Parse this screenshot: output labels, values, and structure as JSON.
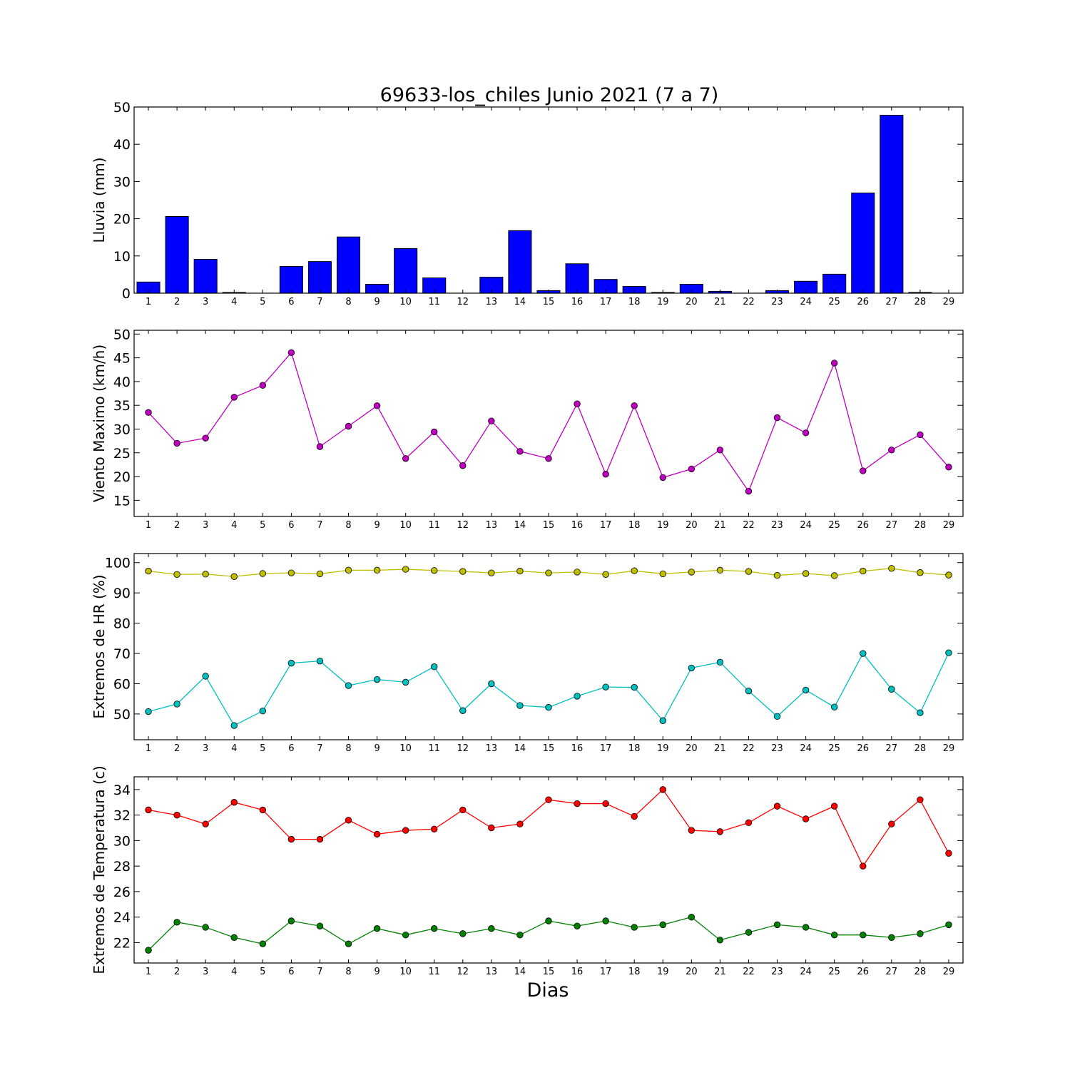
{
  "title": "69633-los_chiles Junio 2021  (7 a 7)",
  "xlabel": "Dias",
  "days": [
    1,
    2,
    3,
    4,
    5,
    6,
    7,
    8,
    9,
    10,
    11,
    12,
    13,
    14,
    15,
    16,
    17,
    18,
    19,
    20,
    21,
    22,
    23,
    24,
    25,
    26,
    27,
    28,
    29
  ],
  "colors": {
    "rain": "#0000ff",
    "wind": "#bf00bf",
    "hr_max": "#bfbf00",
    "hr_min": "#00bfbf",
    "temp_max": "#ff0000",
    "temp_min": "#008000"
  },
  "chart_data": [
    {
      "type": "bar",
      "ylabel": "Lluvia (mm)",
      "ylim": [
        0,
        50
      ],
      "yticks": [
        0,
        10,
        20,
        30,
        40,
        50
      ],
      "x": [
        1,
        2,
        3,
        4,
        5,
        6,
        7,
        8,
        9,
        10,
        11,
        12,
        13,
        14,
        15,
        16,
        17,
        18,
        19,
        20,
        21,
        22,
        23,
        24,
        25,
        26,
        27,
        28,
        29
      ],
      "values": [
        3.0,
        20.6,
        9.1,
        0.2,
        0.0,
        7.2,
        8.5,
        15.1,
        2.4,
        12.0,
        4.1,
        0.0,
        4.3,
        16.8,
        0.7,
        7.9,
        3.7,
        1.8,
        0.2,
        2.4,
        0.5,
        0.0,
        0.7,
        3.2,
        5.1,
        26.9,
        47.8,
        0.2,
        0.0
      ]
    },
    {
      "type": "line",
      "ylabel": "Viento Maximo (km/h)",
      "ylim": [
        11.6,
        50.8
      ],
      "yticks": [
        15,
        20,
        25,
        30,
        35,
        40,
        45,
        50
      ],
      "x": [
        1,
        2,
        3,
        4,
        5,
        6,
        7,
        8,
        9,
        10,
        11,
        12,
        13,
        14,
        15,
        16,
        17,
        18,
        19,
        20,
        21,
        22,
        23,
        24,
        25,
        26,
        27,
        28,
        29
      ],
      "series": [
        {
          "color": "#bf00bf",
          "values": [
            33.5,
            27.0,
            28.1,
            36.7,
            39.2,
            46.1,
            26.3,
            30.6,
            34.9,
            23.8,
            29.4,
            22.3,
            31.7,
            25.3,
            23.8,
            35.3,
            20.5,
            34.9,
            19.8,
            21.6,
            25.6,
            16.9,
            32.4,
            29.2,
            43.9,
            21.2,
            25.6,
            28.8,
            22.0
          ]
        }
      ]
    },
    {
      "type": "line",
      "ylabel": "Extremos de HR (%)",
      "ylim": [
        41.5,
        103
      ],
      "yticks": [
        50,
        60,
        70,
        80,
        90,
        100
      ],
      "x": [
        1,
        2,
        3,
        4,
        5,
        6,
        7,
        8,
        9,
        10,
        11,
        12,
        13,
        14,
        15,
        16,
        17,
        18,
        19,
        20,
        21,
        22,
        23,
        24,
        25,
        26,
        27,
        28,
        29
      ],
      "series": [
        {
          "color": "#bfbf00",
          "values": [
            97.2,
            96.1,
            96.2,
            95.4,
            96.4,
            96.6,
            96.3,
            97.5,
            97.5,
            97.8,
            97.4,
            97.1,
            96.6,
            97.2,
            96.6,
            96.9,
            96.1,
            97.3,
            96.3,
            96.9,
            97.5,
            97.1,
            95.8,
            96.4,
            95.7,
            97.2,
            98.1,
            96.7,
            95.9
          ]
        },
        {
          "color": "#00bfbf",
          "values": [
            50.8,
            53.3,
            62.5,
            46.2,
            51.0,
            66.8,
            67.5,
            59.4,
            61.4,
            60.5,
            65.6,
            51.1,
            60.0,
            52.8,
            52.2,
            55.9,
            58.9,
            58.8,
            47.8,
            65.2,
            67.1,
            57.6,
            49.2,
            57.9,
            52.3,
            70.0,
            58.2,
            50.4,
            70.2
          ]
        }
      ]
    },
    {
      "type": "line",
      "ylabel": "Extremos de Temperatura (c)",
      "ylim": [
        20.4,
        35.0
      ],
      "yticks": [
        22,
        24,
        26,
        28,
        30,
        32,
        34
      ],
      "x": [
        1,
        2,
        3,
        4,
        5,
        6,
        7,
        8,
        9,
        10,
        11,
        12,
        13,
        14,
        15,
        16,
        17,
        18,
        19,
        20,
        21,
        22,
        23,
        24,
        25,
        26,
        27,
        28,
        29
      ],
      "series": [
        {
          "color": "#ff0000",
          "values": [
            32.4,
            32.0,
            31.3,
            33.0,
            32.4,
            30.1,
            30.1,
            31.6,
            30.5,
            30.8,
            30.9,
            32.4,
            31.0,
            31.3,
            33.2,
            32.9,
            32.9,
            31.9,
            34.0,
            30.8,
            30.7,
            31.4,
            32.7,
            31.7,
            32.7,
            28.0,
            31.3,
            33.2,
            29.0
          ]
        },
        {
          "color": "#008000",
          "values": [
            21.4,
            23.6,
            23.2,
            22.4,
            21.9,
            23.7,
            23.3,
            21.9,
            23.1,
            22.6,
            23.1,
            22.7,
            23.1,
            22.6,
            23.7,
            23.3,
            23.7,
            23.2,
            23.4,
            24.0,
            22.2,
            22.8,
            23.4,
            23.2,
            22.6,
            22.6,
            22.4,
            22.7,
            23.4
          ]
        }
      ]
    }
  ]
}
